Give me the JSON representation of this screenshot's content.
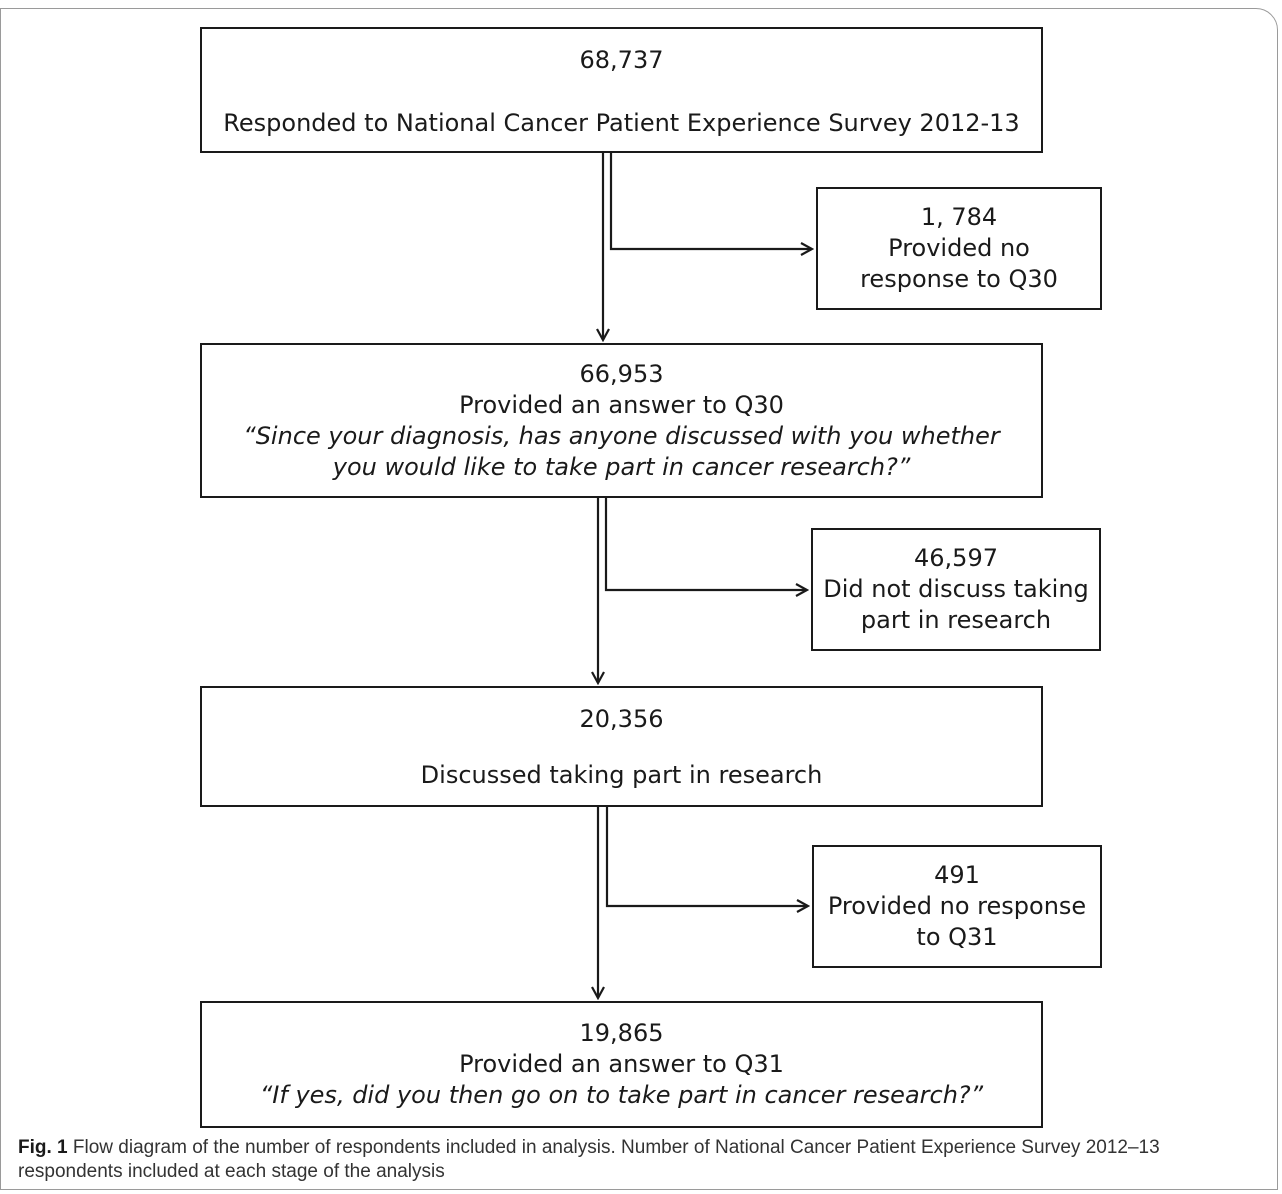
{
  "stages": [
    {
      "count": "68,737",
      "label": "Responded to National Cancer Patient Experience Survey 2012-13"
    },
    {
      "count": "66,953",
      "label": "Provided an answer to Q30",
      "question": "“Since your diagnosis, has anyone discussed with you whether you would like to take part in cancer research?”"
    },
    {
      "count": "20,356",
      "label": "Discussed taking part in research"
    },
    {
      "count": "19,865",
      "label": "Provided an answer to Q31",
      "question": "“If yes, did you then go on to take part in cancer research?”"
    }
  ],
  "exclusions": [
    {
      "count": "1, 784",
      "label_line1": "Provided no",
      "label_line2": "response to Q30"
    },
    {
      "count": "46,597",
      "label_line1": "Did not discuss taking",
      "label_line2": "part in research"
    },
    {
      "count": "491",
      "label_line1": "Provided no response",
      "label_line2": "to Q31"
    }
  ],
  "caption": {
    "label": "Fig. 1",
    "text": "Flow diagram of the number of respondents included in analysis. Number of National Cancer Patient Experience Survey 2012–13 respondents included at each stage of the analysis"
  }
}
